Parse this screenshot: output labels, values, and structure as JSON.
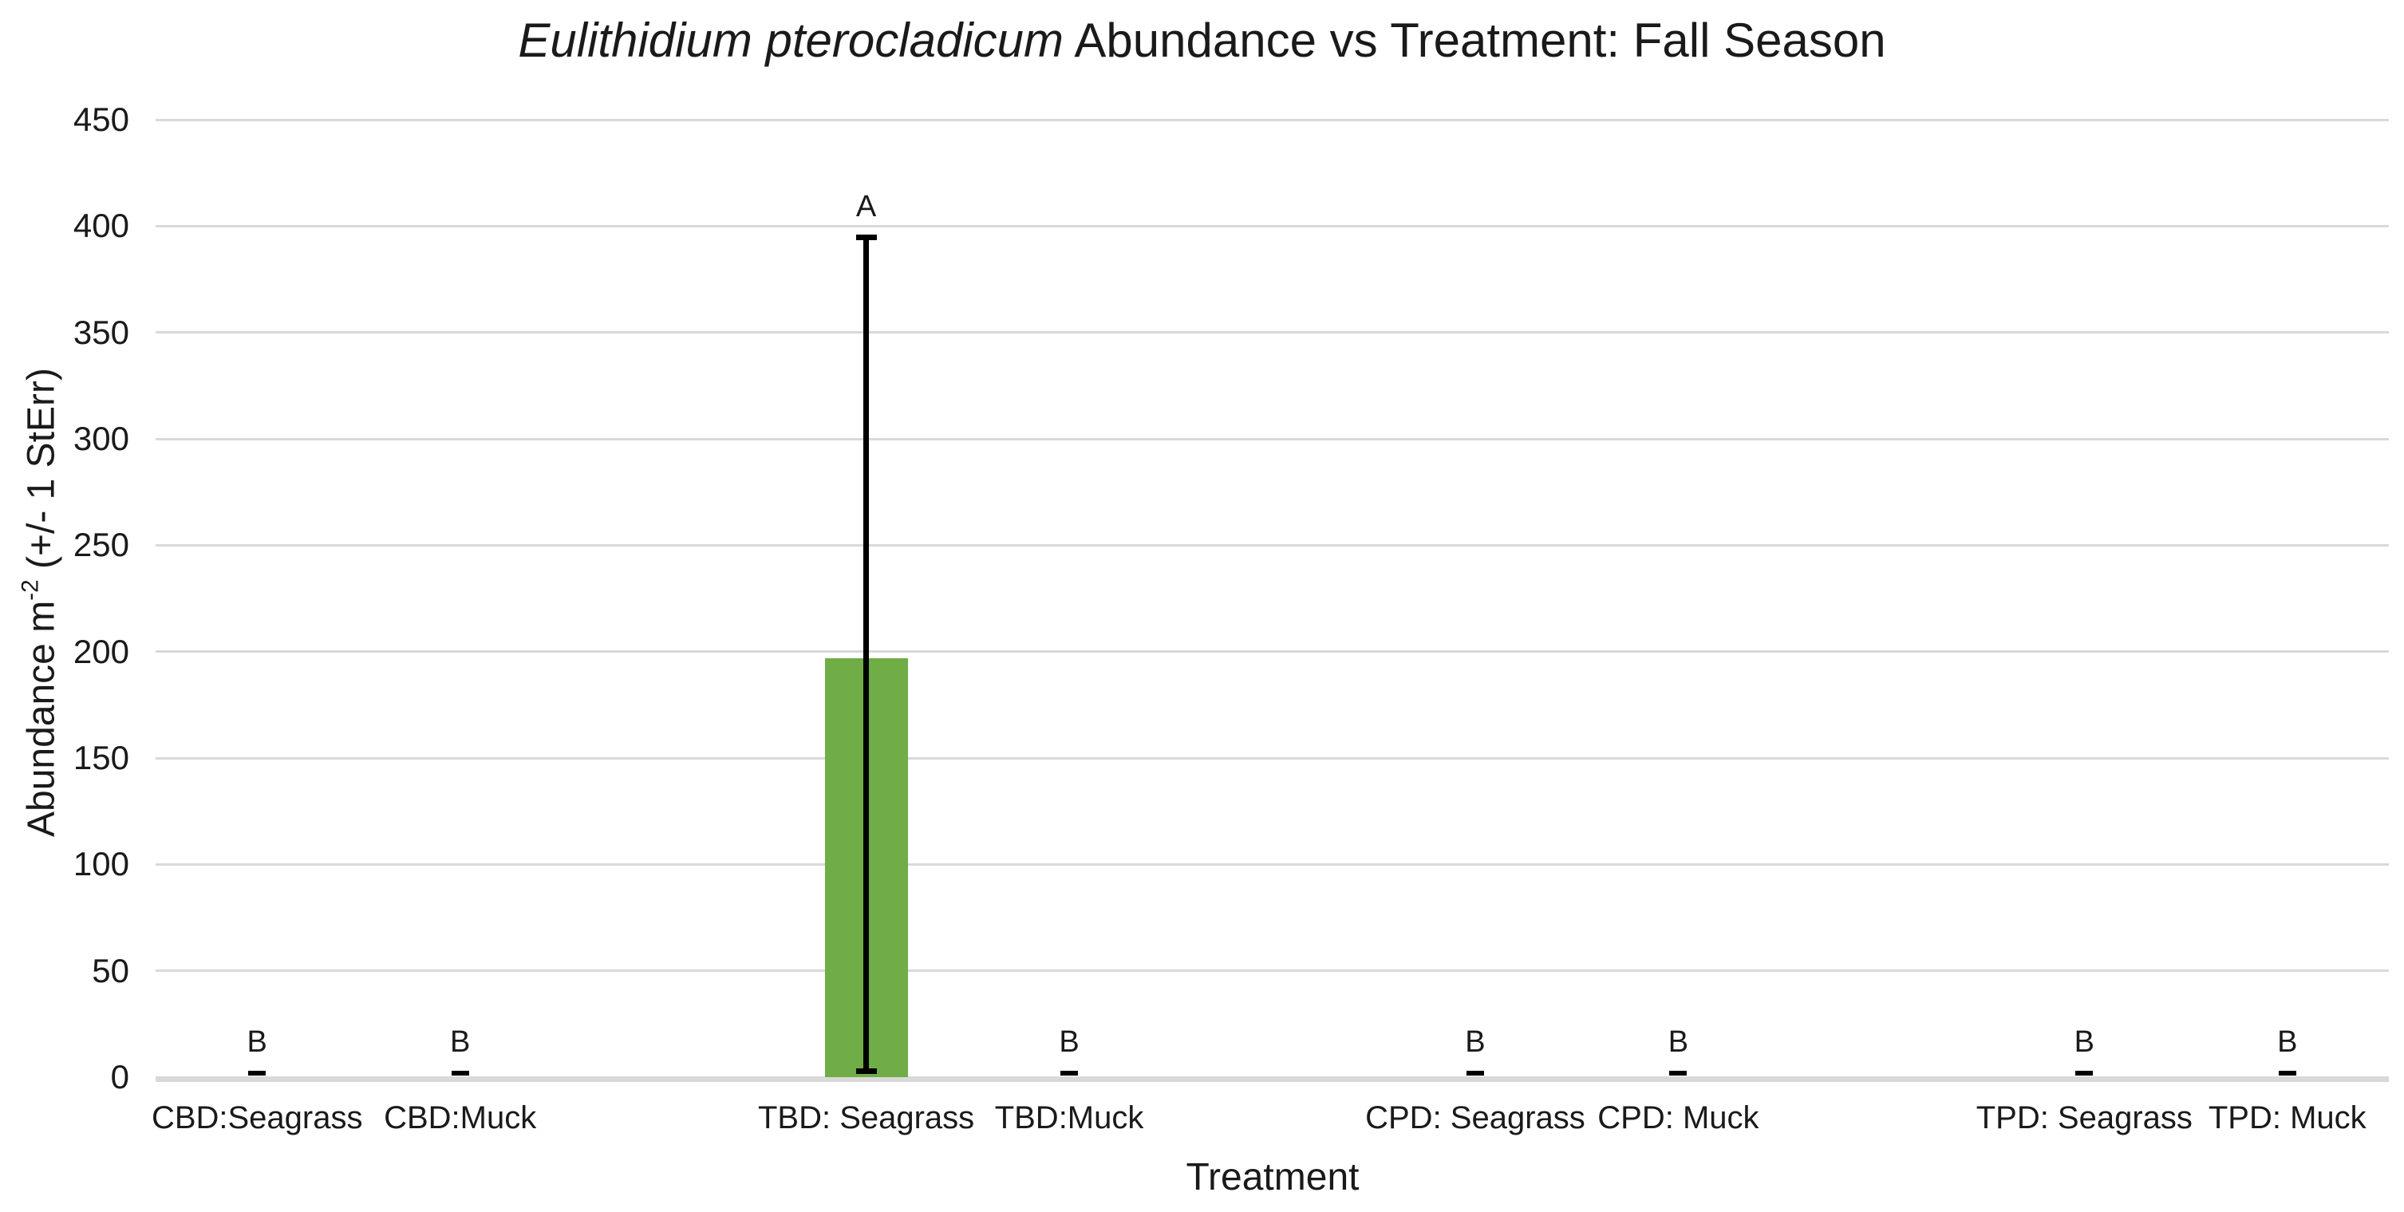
{
  "page": {
    "background_color": "#FFFFFF",
    "text_color": "#1A1A1A"
  },
  "chart_data": {
    "type": "bar",
    "title": "Eulithidium pterocladicum Abundance vs Treatment: Fall Season",
    "title_italic_part": "Eulithidium pterocladicum",
    "title_regular_part": " Abundance vs Treatment: Fall Season",
    "xlabel": "Treatment",
    "ylabel": "Abundance m⁻² (+/- 1 StErr)",
    "ylabel_parts": {
      "prefix": "Abundance m",
      "superscript": "-2",
      "suffix": " (+/- 1 StErr)"
    },
    "categories": [
      "CBD:Seagrass",
      "CBD:Muck",
      "TBD: Seagrass",
      "TBD:Muck",
      "CPD: Seagrass",
      "CPD: Muck",
      "TPD: Seagrass",
      "TPD: Muck"
    ],
    "values": [
      0,
      0,
      197,
      0,
      0,
      0,
      0,
      0
    ],
    "error_upper_bounds": [
      2,
      2,
      395,
      2,
      2,
      2,
      2,
      2
    ],
    "sig_letters": [
      "B",
      "B",
      "A",
      "B",
      "B",
      "B",
      "B",
      "B"
    ],
    "ylim": [
      0,
      450
    ],
    "yticks": [
      450,
      400,
      350,
      300,
      250,
      200,
      150,
      100,
      50,
      0
    ],
    "grid": true,
    "legend": false,
    "bar_color": "#70AD47",
    "error_bar_color": "#000000",
    "gridline_color": "#D9D9D9",
    "axis_line_color": "#D9D9D9",
    "n_slots": 11,
    "slot_indices": [
      0,
      1,
      3,
      4,
      6,
      7,
      9,
      10
    ]
  }
}
